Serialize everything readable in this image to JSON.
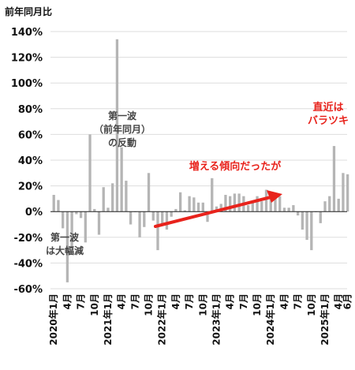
{
  "chart_data": {
    "type": "bar",
    "unit_label": "前年同月比",
    "ylim": [
      -60,
      140
    ],
    "y_ticks": [
      140,
      120,
      100,
      80,
      60,
      40,
      20,
      0,
      -20,
      -40,
      -60
    ],
    "y_tick_labels": [
      "140%",
      "120%",
      "100%",
      "80%",
      "60%",
      "40%",
      "20%",
      "0%",
      "-20%",
      "-40%",
      "-60%"
    ],
    "grid": true,
    "x_tick_labels": [
      {
        "i": 0,
        "label": "2020年1月"
      },
      {
        "i": 3,
        "label": "4月"
      },
      {
        "i": 6,
        "label": "7月"
      },
      {
        "i": 9,
        "label": "10月"
      },
      {
        "i": 12,
        "label": "2021年1月"
      },
      {
        "i": 15,
        "label": "4月"
      },
      {
        "i": 18,
        "label": "7月"
      },
      {
        "i": 21,
        "label": "10月"
      },
      {
        "i": 24,
        "label": "2022年1月"
      },
      {
        "i": 27,
        "label": "4月"
      },
      {
        "i": 30,
        "label": "7月"
      },
      {
        "i": 33,
        "label": "10月"
      },
      {
        "i": 36,
        "label": "2023年1月"
      },
      {
        "i": 39,
        "label": "4月"
      },
      {
        "i": 42,
        "label": "7月"
      },
      {
        "i": 45,
        "label": "10月"
      },
      {
        "i": 48,
        "label": "2024年1月"
      },
      {
        "i": 51,
        "label": "4月"
      },
      {
        "i": 54,
        "label": "7月"
      },
      {
        "i": 57,
        "label": "10月"
      },
      {
        "i": 60,
        "label": "2025年1月"
      },
      {
        "i": 63,
        "label": "4月"
      },
      {
        "i": 65,
        "label": "6月"
      }
    ],
    "values": [
      13,
      9,
      -13,
      -55,
      -28,
      -2,
      -5,
      -24,
      60,
      2,
      -18,
      19,
      3,
      22,
      134,
      50,
      24,
      -10,
      0,
      -20,
      -12,
      30,
      -7,
      -30,
      -10,
      -14,
      -4,
      2,
      15,
      1,
      12,
      11,
      7,
      7,
      -8,
      26,
      4,
      6,
      13,
      12,
      14,
      14,
      12,
      5,
      7,
      12,
      8,
      17,
      12,
      14,
      12,
      3,
      3,
      5,
      -3,
      -14,
      -22,
      -30,
      0,
      -9,
      8,
      12,
      51,
      10,
      30,
      29
    ],
    "annotations": {
      "wave1_top": [
        "第一波",
        "（前年同月）",
        "の反動"
      ],
      "wave1_bottom": [
        "第一波",
        "は大幅減"
      ],
      "trend": "増える傾向だったが",
      "recent": [
        "直近は",
        "バラツキ"
      ]
    },
    "colors": {
      "bar": "#b5b5b5",
      "grid": "#dddddd",
      "axis": "#222222",
      "trend_arrow": "#e8231c",
      "annotation_red": "#e8231c",
      "annotation_gray": "#444444"
    }
  }
}
